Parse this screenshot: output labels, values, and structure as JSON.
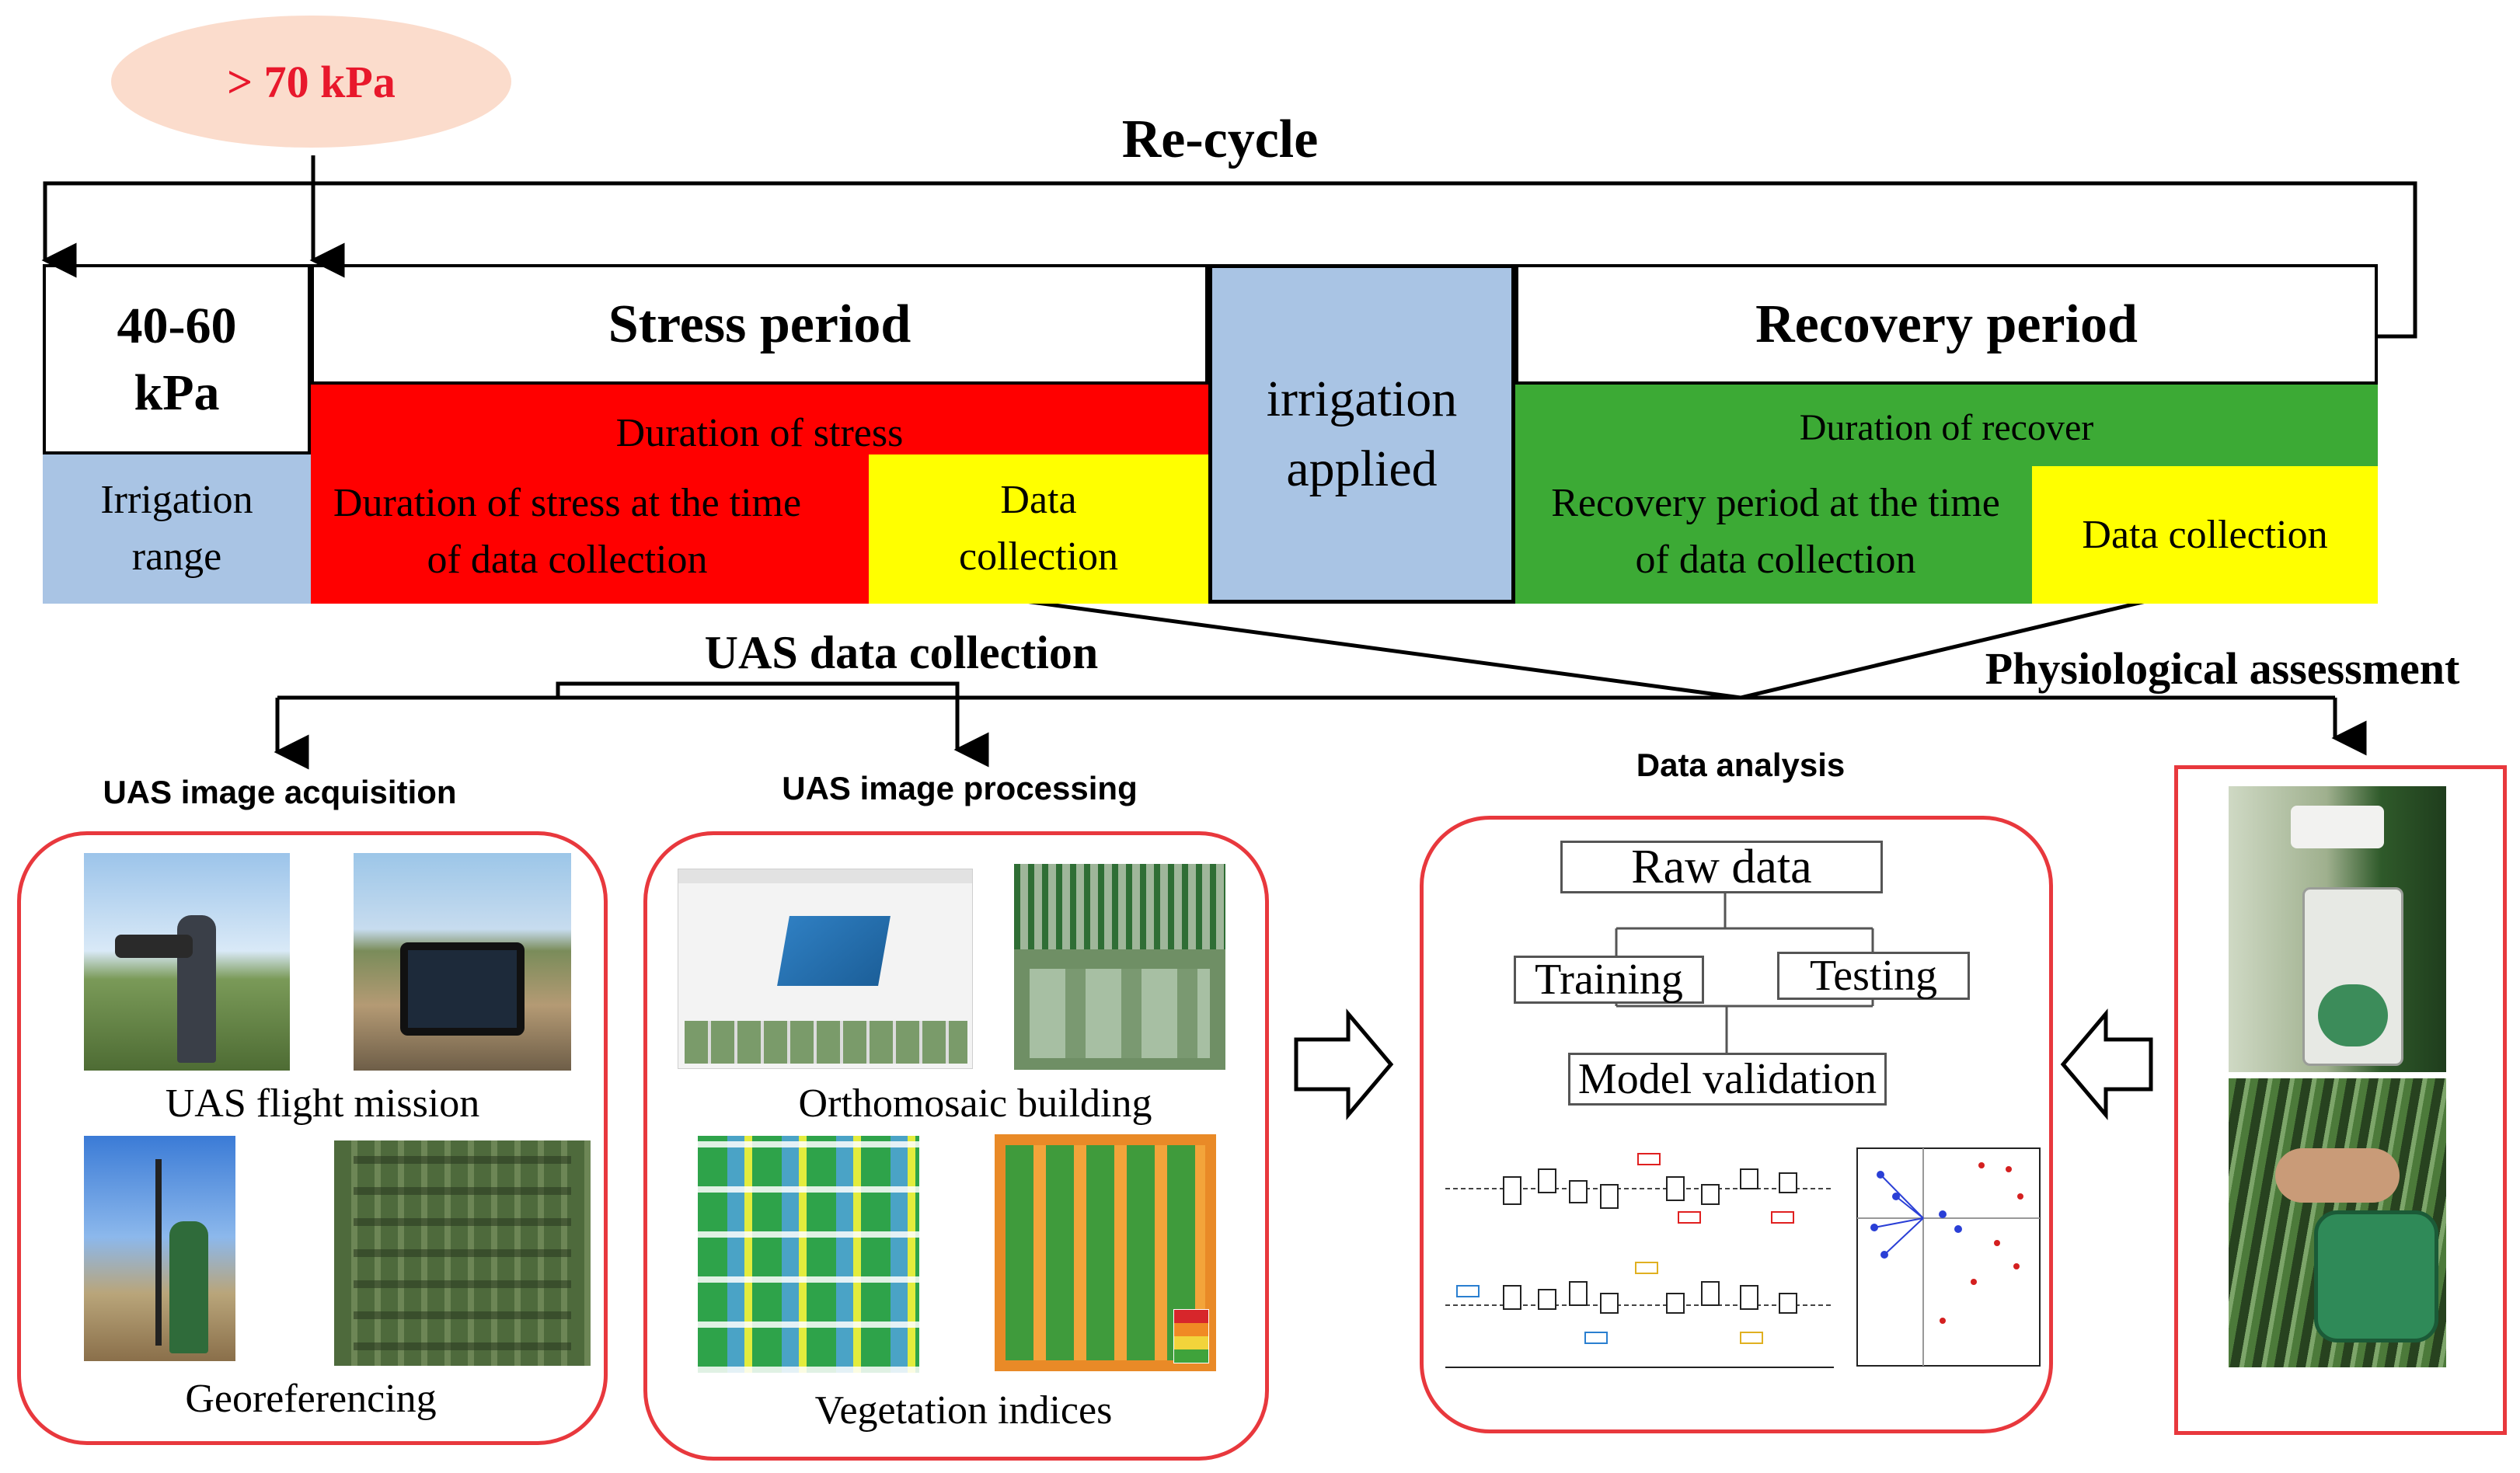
{
  "header": {
    "threshold": "> 70 kPa",
    "recycle": "Re-cycle"
  },
  "timeline": {
    "range_kpa": "40-60 kPa",
    "irrigation_range": "Irrigation range",
    "stress_period": "Stress period",
    "duration_of_stress": "Duration of stress",
    "stress_at_collection": "Duration of stress at the time of data collection",
    "stress_data_collection": "Data collection",
    "irrigation_applied": "irrigation applied",
    "recovery_period": "Recovery period",
    "duration_of_recover": "Duration of recover",
    "recovery_at_collection": "Recovery period at the time of data collection",
    "recovery_data_collection": "Data collection"
  },
  "sections": {
    "uas_data_collection": "UAS data collection",
    "physiological_assessment": "Physiological assessment",
    "data_analysis": "Data analysis"
  },
  "acquisition": {
    "title": "UAS image acquisition",
    "flight_caption": "UAS flight mission",
    "georef_caption": "Georeferencing"
  },
  "processing": {
    "title": "UAS image processing",
    "ortho_caption": "Orthomosaic building",
    "vi_caption": "Vegetation indices"
  },
  "analysis": {
    "raw_data": "Raw data",
    "training": "Training",
    "testing": "Testing",
    "model_validation": "Model validation"
  },
  "colors": {
    "stress": "#ff0000",
    "data_collection": "#ffff00",
    "recovery": "#3caa35",
    "irrigation": "#a9c4e4",
    "panel_border": "#e8383d",
    "threshold_bubble": "#fbdccc"
  }
}
